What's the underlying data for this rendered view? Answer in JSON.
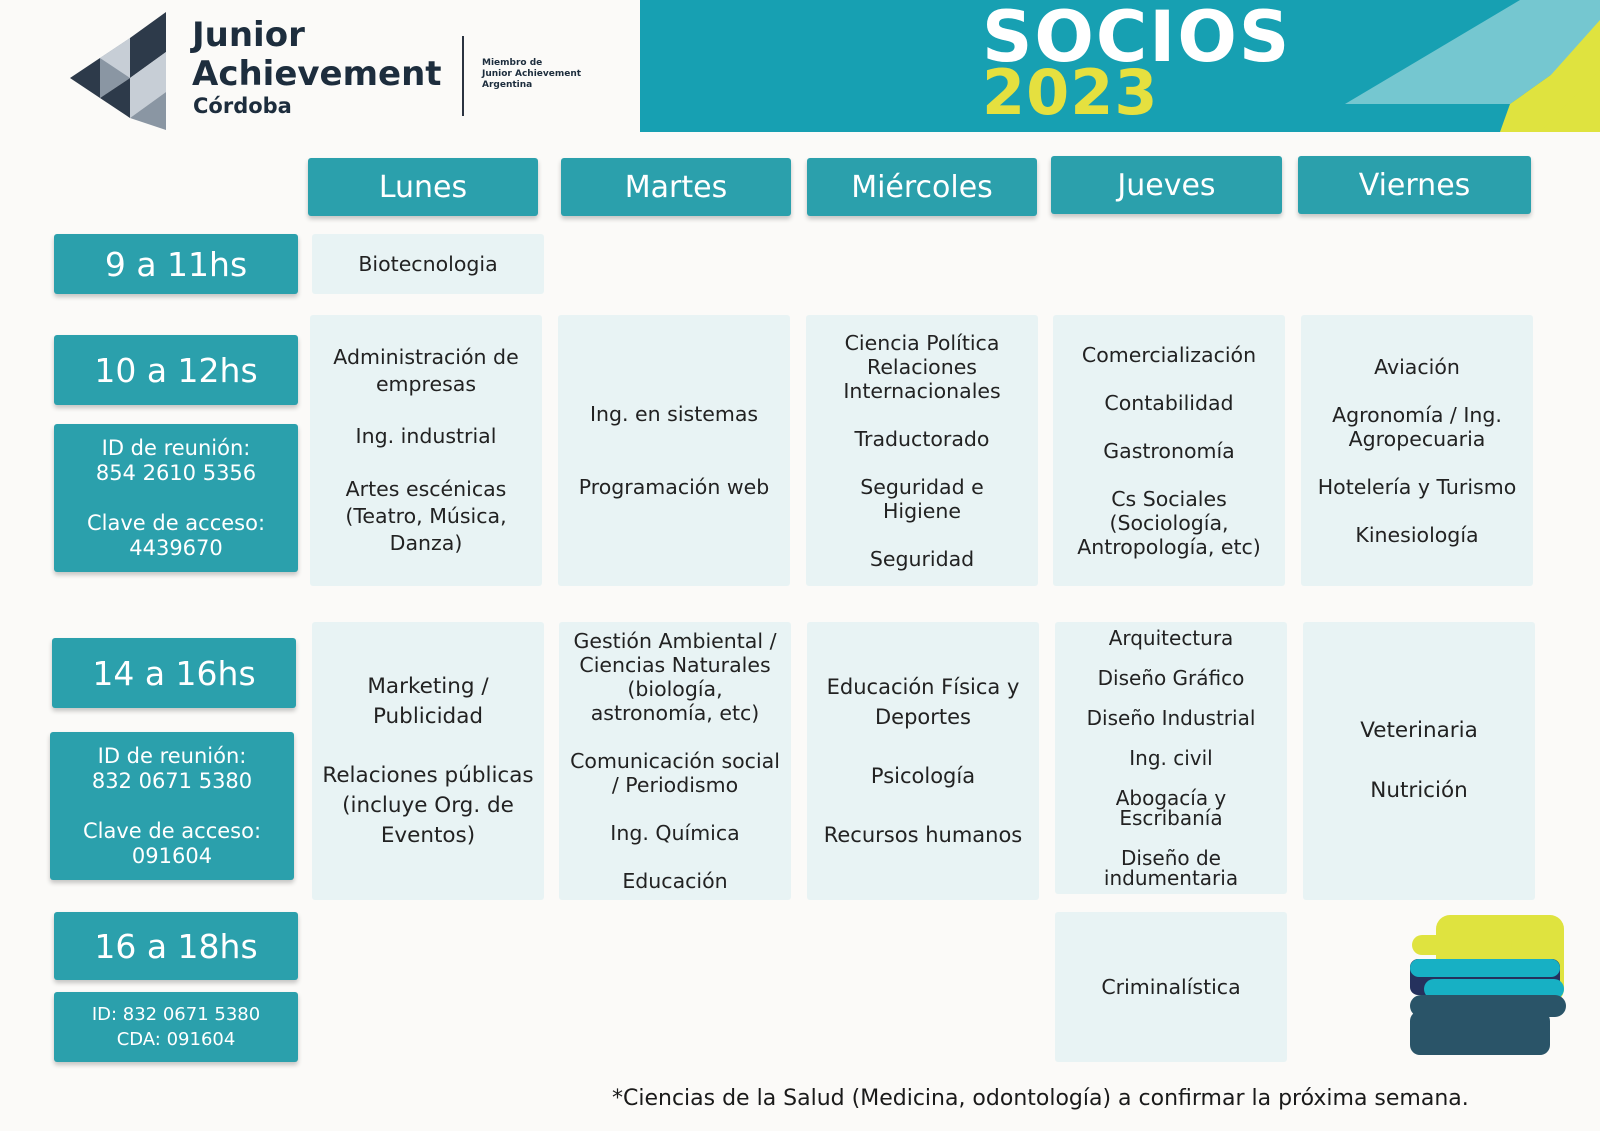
{
  "header": {
    "logo": {
      "line1": "Junior",
      "line2": "Achievement",
      "line3": "Córdoba"
    },
    "member": [
      "Miembro de",
      "Junior Achievement",
      "Argentina"
    ],
    "title": "SOCIOS",
    "year": "2023"
  },
  "days": [
    "Lunes",
    "Martes",
    "Miércoles",
    "Jueves",
    "Viernes"
  ],
  "slots": {
    "s1": {
      "time": "9 a 11hs"
    },
    "s2": {
      "time": "10 a 12hs",
      "id_label": "ID de reunión:",
      "id_value": "854 2610 5356",
      "key_label": "Clave de acceso:",
      "key_value": "4439670"
    },
    "s3": {
      "time": "14 a 16hs",
      "id_label": "ID de reunión:",
      "id_value": "832 0671 5380",
      "key_label": "Clave de acceso:",
      "key_value": "091604"
    },
    "s4": {
      "time": "16 a 18hs",
      "id_line": "ID: 832 0671 5380",
      "key_line": "CDA: 091604"
    }
  },
  "cells": {
    "s1_lunes": [
      "Biotecnologia"
    ],
    "s2_lunes": [
      "Administración de\nempresas",
      "Ing. industrial",
      "Artes escénicas\n(Teatro, Música,\nDanza)"
    ],
    "s2_martes": [
      "Ing. en sistemas",
      "Programación web"
    ],
    "s2_miercoles": [
      "Ciencia Política\nRelaciones\nInternacionales",
      "Traductorado",
      "Seguridad e\nHigiene",
      "Seguridad"
    ],
    "s2_jueves": [
      "Comercialización",
      "Contabilidad",
      "Gastronomía",
      "Cs Sociales\n(Sociología,\nAntropología, etc)"
    ],
    "s2_viernes": [
      "Aviación",
      "Agronomía / Ing.\nAgropecuaria",
      "Hotelería y Turismo",
      "Kinesiología"
    ],
    "s3_lunes": [
      "Marketing /\nPublicidad",
      "Relaciones públicas\n(incluye Org. de\nEventos)"
    ],
    "s3_martes": [
      "Gestión Ambiental /\nCiencias Naturales\n(biología,\nastronomía, etc)",
      "Comunicación social\n/ Periodismo",
      "Ing. Química",
      "Educación"
    ],
    "s3_miercoles": [
      "Educación Física y\nDeportes",
      "Psicología",
      "Recursos humanos"
    ],
    "s3_jueves": [
      "Arquitectura",
      "Diseño Gráfico",
      "Diseño Industrial",
      "Ing. civil",
      "Abogacía y\nEscribanía",
      "Diseño de\nindumentaria"
    ],
    "s3_viernes": [
      "Veterinaria",
      "Nutrición"
    ],
    "s4_jueves": [
      "Criminalística"
    ]
  },
  "footer": "*Ciencias de la Salud (Medicina, odontología) a confirmar la próxima semana.",
  "colors": {
    "teal": "#2ba0ac",
    "banner": "#17a0b2",
    "yellow": "#e5e03f",
    "cell": "#e8f3f4",
    "navy": "#1d2d3d"
  }
}
